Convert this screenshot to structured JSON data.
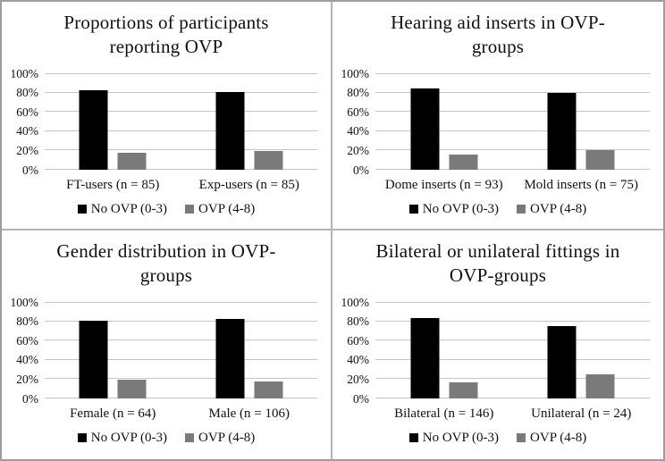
{
  "figure": {
    "description": "Four-panel bar chart figure comparing OVP groups",
    "background": "#ffffff",
    "outer_border_color": "#9d9d9d",
    "divider_color": "#b5b5b5"
  },
  "colors": {
    "bar_no_ovp": "#000000",
    "bar_ovp": "#7a7a7a",
    "gridline": "#c6c6c6",
    "text": "#111111"
  },
  "chart_data": [
    {
      "type": "bar",
      "title": "Proportions of participants reporting OVP",
      "title_lines": [
        "Proportions of participants",
        "reporting OVP"
      ],
      "categories": [
        "FT-users (n = 85)",
        "Exp-users (n = 85)"
      ],
      "series": [
        {
          "name": "No OVP (0-3)",
          "color": "#000000",
          "values": [
            82,
            81
          ]
        },
        {
          "name": "OVP (4-8)",
          "color": "#7a7a7a",
          "values": [
            18,
            19
          ]
        }
      ],
      "ylim": [
        0,
        100
      ],
      "yticks": [
        0,
        20,
        40,
        60,
        80,
        100
      ],
      "yticklabels": [
        "0%",
        "20%",
        "40%",
        "60%",
        "80%",
        "100%"
      ],
      "grid": true,
      "legend_position": "bottom"
    },
    {
      "type": "bar",
      "title": "Hearing aid inserts in OVP-groups",
      "title_lines": [
        "Hearing aid inserts in OVP-",
        "groups"
      ],
      "categories": [
        "Dome inserts (n = 93)",
        "Mold inserts (n = 75)"
      ],
      "series": [
        {
          "name": "No OVP (0-3)",
          "color": "#000000",
          "values": [
            84,
            80
          ]
        },
        {
          "name": "OVP (4-8)",
          "color": "#7a7a7a",
          "values": [
            16,
            20
          ]
        }
      ],
      "ylim": [
        0,
        100
      ],
      "yticks": [
        0,
        20,
        40,
        60,
        80,
        100
      ],
      "yticklabels": [
        "0%",
        "20%",
        "40%",
        "60%",
        "80%",
        "100%"
      ],
      "grid": true,
      "legend_position": "bottom"
    },
    {
      "type": "bar",
      "title": "Gender distribution in OVP-groups",
      "title_lines": [
        "Gender distribution in OVP-",
        "groups"
      ],
      "categories": [
        "Female (n = 64)",
        "Male (n = 106)"
      ],
      "series": [
        {
          "name": "No OVP (0-3)",
          "color": "#000000",
          "values": [
            81,
            82
          ]
        },
        {
          "name": "OVP (4-8)",
          "color": "#7a7a7a",
          "values": [
            19,
            18
          ]
        }
      ],
      "ylim": [
        0,
        100
      ],
      "yticks": [
        0,
        20,
        40,
        60,
        80,
        100
      ],
      "yticklabels": [
        "0%",
        "20%",
        "40%",
        "60%",
        "80%",
        "100%"
      ],
      "grid": true,
      "legend_position": "bottom"
    },
    {
      "type": "bar",
      "title": "Bilateral or unilateral fittings in OVP-groups",
      "title_lines": [
        "Bilateral or unilateral fittings in",
        "OVP-groups"
      ],
      "categories": [
        "Bilateral (n = 146)",
        "Unilateral (n = 24)"
      ],
      "series": [
        {
          "name": "No OVP (0-3)",
          "color": "#000000",
          "values": [
            83,
            75
          ]
        },
        {
          "name": "OVP (4-8)",
          "color": "#7a7a7a",
          "values": [
            17,
            25
          ]
        }
      ],
      "ylim": [
        0,
        100
      ],
      "yticks": [
        0,
        20,
        40,
        60,
        80,
        100
      ],
      "yticklabels": [
        "0%",
        "20%",
        "40%",
        "60%",
        "80%",
        "100%"
      ],
      "grid": true,
      "legend_position": "bottom"
    }
  ]
}
